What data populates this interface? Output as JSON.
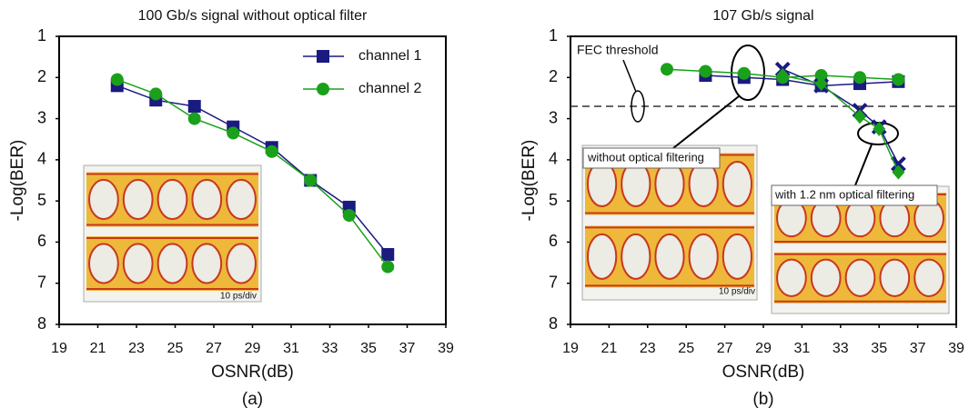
{
  "chart_data": [
    {
      "type": "line",
      "title": "100 Gb/s signal without optical filter",
      "caption": "(a)",
      "xlabel": "OSNR(dB)",
      "ylabel": "-Log(BER)",
      "xlim": [
        19,
        39
      ],
      "xticks": [
        19,
        21,
        23,
        25,
        27,
        29,
        31,
        33,
        35,
        37,
        39
      ],
      "ylim": [
        8,
        1
      ],
      "yticks": [
        1,
        2,
        3,
        4,
        5,
        6,
        7,
        8
      ],
      "legend": "upper right",
      "series": [
        {
          "name": "channel 1",
          "color": "#1a1a80",
          "marker": "square",
          "x": [
            22,
            24,
            26,
            28,
            30,
            32,
            34,
            36
          ],
          "values": [
            2.2,
            2.55,
            2.7,
            3.2,
            3.7,
            4.5,
            5.15,
            6.3
          ]
        },
        {
          "name": "channel 2",
          "color": "#1aa01a",
          "marker": "circle",
          "x": [
            22,
            24,
            26,
            28,
            30,
            32,
            34,
            36
          ],
          "values": [
            2.05,
            2.4,
            3.0,
            3.35,
            3.8,
            4.5,
            5.35,
            6.6
          ]
        }
      ],
      "annotations": [
        "10 ps/div"
      ]
    },
    {
      "type": "line",
      "title": "107 Gb/s signal",
      "caption": "(b)",
      "xlabel": "OSNR(dB)",
      "ylabel": "-Log(BER)",
      "xlim": [
        19,
        39
      ],
      "xticks": [
        19,
        21,
        23,
        25,
        27,
        29,
        31,
        33,
        35,
        37,
        39
      ],
      "ylim": [
        8,
        1
      ],
      "yticks": [
        1,
        2,
        3,
        4,
        5,
        6,
        7,
        8
      ],
      "threshold": {
        "value": 2.7,
        "label": "FEC threshold"
      },
      "series": [
        {
          "color": "#1a1a80",
          "marker": "square",
          "x": [
            26,
            28,
            30,
            32,
            34,
            36
          ],
          "values": [
            1.95,
            2.0,
            2.05,
            2.2,
            2.15,
            2.1
          ]
        },
        {
          "color": "#1aa01a",
          "marker": "circle",
          "x": [
            24,
            26,
            28,
            30,
            32,
            34,
            36
          ],
          "values": [
            1.8,
            1.85,
            1.9,
            2.0,
            1.95,
            2.0,
            2.05
          ]
        },
        {
          "color": "#1a1a80",
          "marker": "x",
          "x": [
            30,
            32,
            34,
            35,
            36
          ],
          "values": [
            1.8,
            2.2,
            2.8,
            3.2,
            4.1
          ]
        },
        {
          "color": "#1aa01a",
          "marker": "diamond",
          "x": [
            30,
            32,
            34,
            35,
            36
          ],
          "values": [
            1.95,
            2.15,
            2.95,
            3.25,
            4.3
          ]
        }
      ],
      "annotations": [
        "without optical filtering",
        "with 1.2 nm optical filtering",
        "10 ps/div"
      ]
    }
  ]
}
